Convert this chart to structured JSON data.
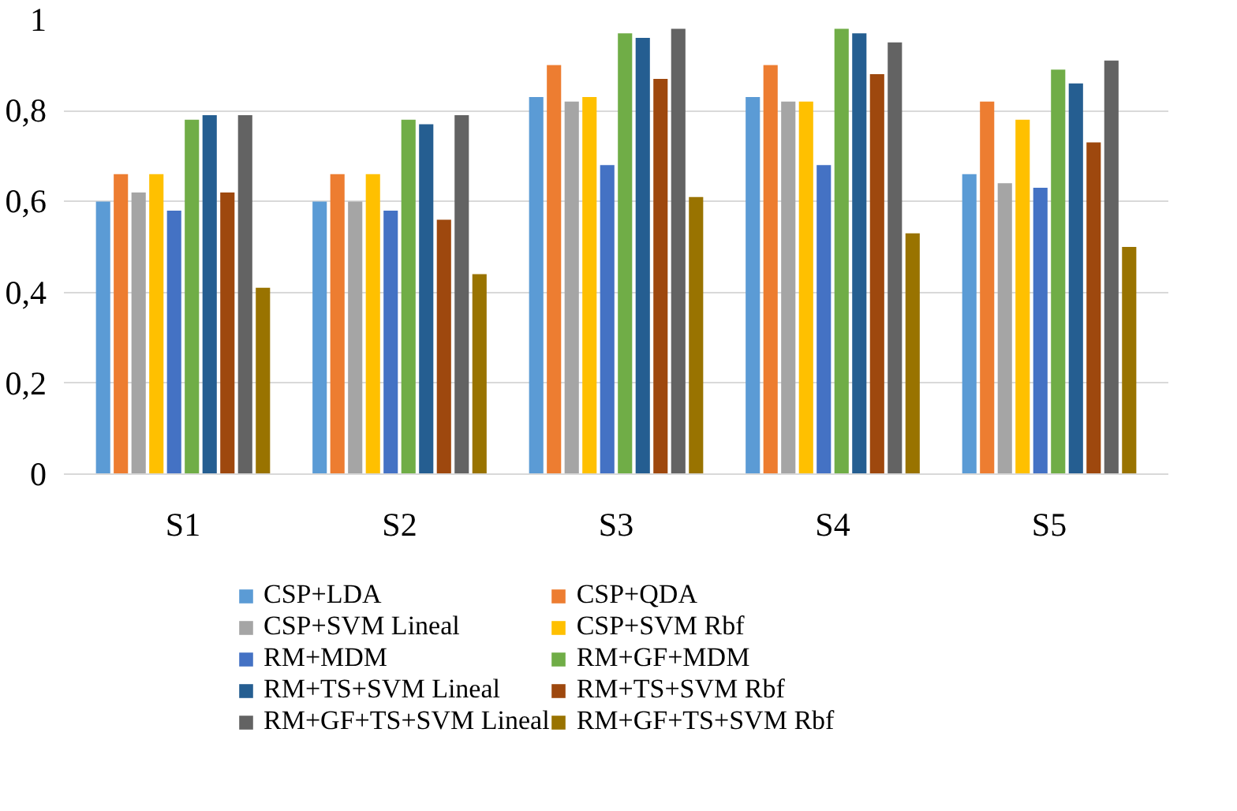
{
  "chart_data": {
    "type": "bar",
    "categories": [
      "S1",
      "S2",
      "S3",
      "S4",
      "S5"
    ],
    "series": [
      {
        "name": "CSP+LDA",
        "color": "#5b9bd5",
        "values": [
          0.6,
          0.6,
          0.83,
          0.83,
          0.66
        ]
      },
      {
        "name": "CSP+QDA",
        "color": "#ed7d31",
        "values": [
          0.66,
          0.66,
          0.9,
          0.9,
          0.82
        ]
      },
      {
        "name": "CSP+SVM Lineal",
        "color": "#a5a5a5",
        "values": [
          0.62,
          0.6,
          0.82,
          0.82,
          0.64
        ]
      },
      {
        "name": "CSP+SVM Rbf",
        "color": "#ffc000",
        "values": [
          0.66,
          0.66,
          0.83,
          0.82,
          0.78
        ]
      },
      {
        "name": "RM+MDM",
        "color": "#4472c4",
        "values": [
          0.58,
          0.58,
          0.68,
          0.68,
          0.63
        ]
      },
      {
        "name": "RM+GF+MDM",
        "color": "#70ad47",
        "values": [
          0.78,
          0.78,
          0.97,
          0.98,
          0.89
        ]
      },
      {
        "name": "RM+TS+SVM Lineal",
        "color": "#255e91",
        "values": [
          0.79,
          0.77,
          0.96,
          0.97,
          0.86
        ]
      },
      {
        "name": "RM+TS+SVM Rbf",
        "color": "#9e480e",
        "values": [
          0.62,
          0.56,
          0.87,
          0.88,
          0.73
        ]
      },
      {
        "name": "RM+GF+TS+SVM Lineal",
        "color": "#636363",
        "values": [
          0.79,
          0.79,
          0.98,
          0.95,
          0.91
        ]
      },
      {
        "name": "RM+GF+TS+SVM Rbf",
        "color": "#997300",
        "values": [
          0.41,
          0.44,
          0.61,
          0.53,
          0.5
        ]
      }
    ],
    "ylim": [
      0,
      1
    ],
    "yticks": [
      0,
      {
        "value": 0.2,
        "label": "0,2"
      },
      {
        "value": 0.4,
        "label": "0,4"
      },
      {
        "value": 0.6,
        "label": "0,6"
      },
      {
        "value": 0.8,
        "label": "0,8"
      },
      1
    ],
    "grid": "y",
    "legend": "bottom"
  }
}
